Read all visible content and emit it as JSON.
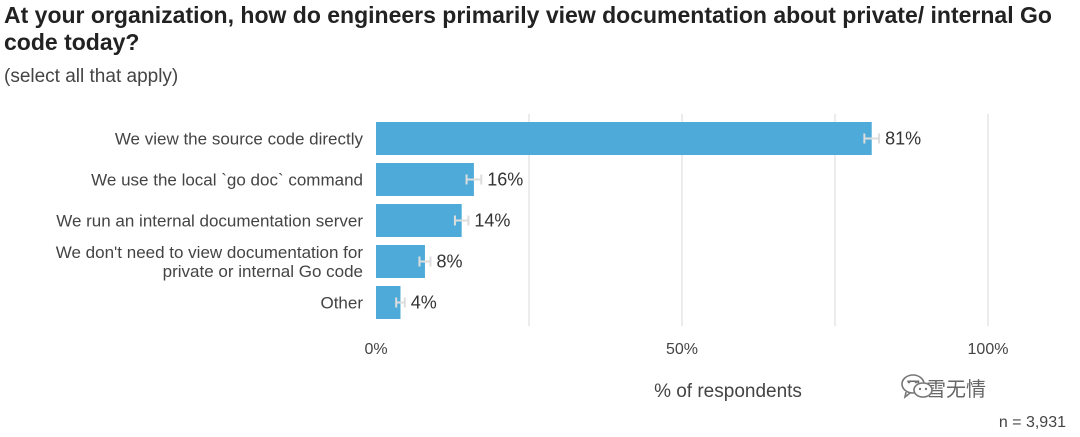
{
  "chart_data": {
    "type": "bar",
    "orientation": "horizontal",
    "title": "At your organization, how do engineers primarily view documentation about private/ internal Go code today?",
    "subtitle": "(select all that apply)",
    "categories": [
      "We view the source code directly",
      "We use the local `go doc` command",
      "We run an internal documentation server",
      "We don't need to view documentation for private or internal Go code",
      "Other"
    ],
    "category_lines": [
      [
        "We view the source code directly"
      ],
      [
        "We use the local `go doc` command"
      ],
      [
        "We run an internal documentation server"
      ],
      [
        "We don't need to view documentation for",
        "private or internal Go code"
      ],
      [
        "Other"
      ]
    ],
    "values": [
      81,
      16,
      14,
      8,
      4
    ],
    "value_labels": [
      "81%",
      "16%",
      "14%",
      "8%",
      "4%"
    ],
    "error_margin": [
      1.2,
      1.2,
      1.1,
      0.9,
      0.7
    ],
    "xlim": [
      0,
      100
    ],
    "ticks": [
      0,
      25,
      50,
      75,
      100
    ],
    "tick_labels": [
      "0%",
      "",
      "50%",
      "",
      "100%"
    ],
    "xlabel": "% of respondents",
    "ylabel": "",
    "n_label": "n =  3,931",
    "bar_color": "#4eabd9",
    "grid_color": "#e6e6e6",
    "error_bar_color": "#dddddd"
  },
  "watermark": {
    "text": "飞雪无情",
    "icon": "wechat-icon"
  }
}
